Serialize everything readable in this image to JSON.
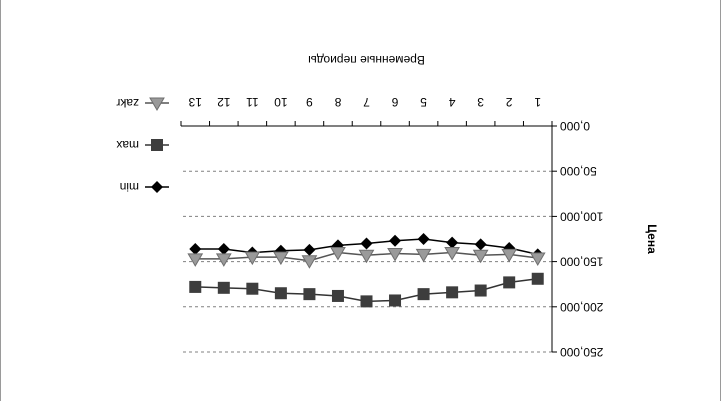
{
  "chart_data": {
    "type": "line",
    "orientation": "rotated-180",
    "xlabel": "Временные периоды",
    "ylabel": "Цена",
    "categories": [
      "1",
      "2",
      "3",
      "4",
      "5",
      "6",
      "7",
      "8",
      "9",
      "10",
      "11",
      "12",
      "13"
    ],
    "y_ticks": [
      "0,000",
      "50,000",
      "100,000",
      "150,000",
      "200,000",
      "250,000"
    ],
    "ylim": [
      0,
      250
    ],
    "grid": true,
    "legend_position": "left",
    "series": [
      {
        "name": "min",
        "marker": "diamond",
        "values": [
          142,
          135,
          131,
          129,
          125,
          127,
          130,
          132,
          137,
          138,
          140,
          136,
          136
        ]
      },
      {
        "name": "max",
        "marker": "square",
        "values": [
          169,
          173,
          182,
          184,
          186,
          193,
          194,
          188,
          186,
          185,
          180,
          179,
          178
        ]
      },
      {
        "name": "zakr",
        "marker": "triangle",
        "values": [
          146,
          142,
          143,
          140,
          142,
          141,
          143,
          140,
          149,
          145,
          145,
          147,
          147
        ]
      }
    ]
  }
}
